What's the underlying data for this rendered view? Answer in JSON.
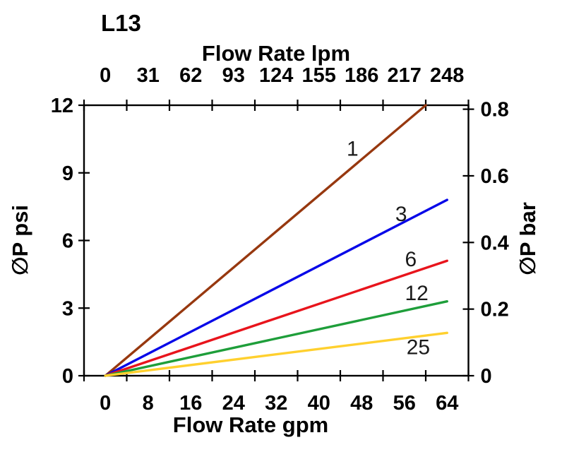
{
  "page": {
    "background_color": "#ffffff",
    "text_color": "#000000"
  },
  "chart_data": {
    "type": "line",
    "title": "L13",
    "xlabel_top": "Flow Rate lpm",
    "xlabel_bottom": "Flow Rate gpm",
    "ylabel_left": "∅P psi",
    "ylabel_right": "∅P bar",
    "xlim": [
      0,
      64
    ],
    "ylim": [
      0,
      12
    ],
    "grid": false,
    "legend": "labels-on-lines",
    "bottom_ticks_gpm": [
      0,
      8,
      16,
      24,
      32,
      40,
      48,
      56,
      64
    ],
    "top_ticks_lpm": [
      0,
      31,
      62,
      93,
      124,
      155,
      186,
      217,
      248
    ],
    "left_ticks_psi": [
      0,
      3,
      6,
      9,
      12
    ],
    "right_ticks_bar": [
      0,
      0.2,
      0.4,
      0.6,
      0.8
    ],
    "right_axis_psi_per_bar": 14.78,
    "x_categories": 9,
    "series": [
      {
        "name": "1",
        "color": "#97380F",
        "points_gpm_psi": [
          [
            0,
            0
          ],
          [
            60,
            12
          ]
        ],
        "label_pos_gpm_psi": [
          46.3,
          10.1
        ]
      },
      {
        "name": "3",
        "color": "#0707E8",
        "points_gpm_psi": [
          [
            0,
            0
          ],
          [
            64,
            7.8
          ]
        ],
        "label_pos_gpm_psi": [
          55.4,
          7.2
        ]
      },
      {
        "name": "6",
        "color": "#E8141C",
        "points_gpm_psi": [
          [
            0,
            0
          ],
          [
            64,
            5.1
          ]
        ],
        "label_pos_gpm_psi": [
          57.2,
          5.2
        ]
      },
      {
        "name": "12",
        "color": "#1E9E3A",
        "points_gpm_psi": [
          [
            0,
            0
          ],
          [
            64,
            3.3
          ]
        ],
        "label_pos_gpm_psi": [
          58.3,
          3.7
        ]
      },
      {
        "name": "25",
        "color": "#FFD02E",
        "points_gpm_psi": [
          [
            0,
            0
          ],
          [
            64,
            1.9
          ]
        ],
        "label_pos_gpm_psi": [
          58.6,
          1.3
        ]
      }
    ]
  }
}
